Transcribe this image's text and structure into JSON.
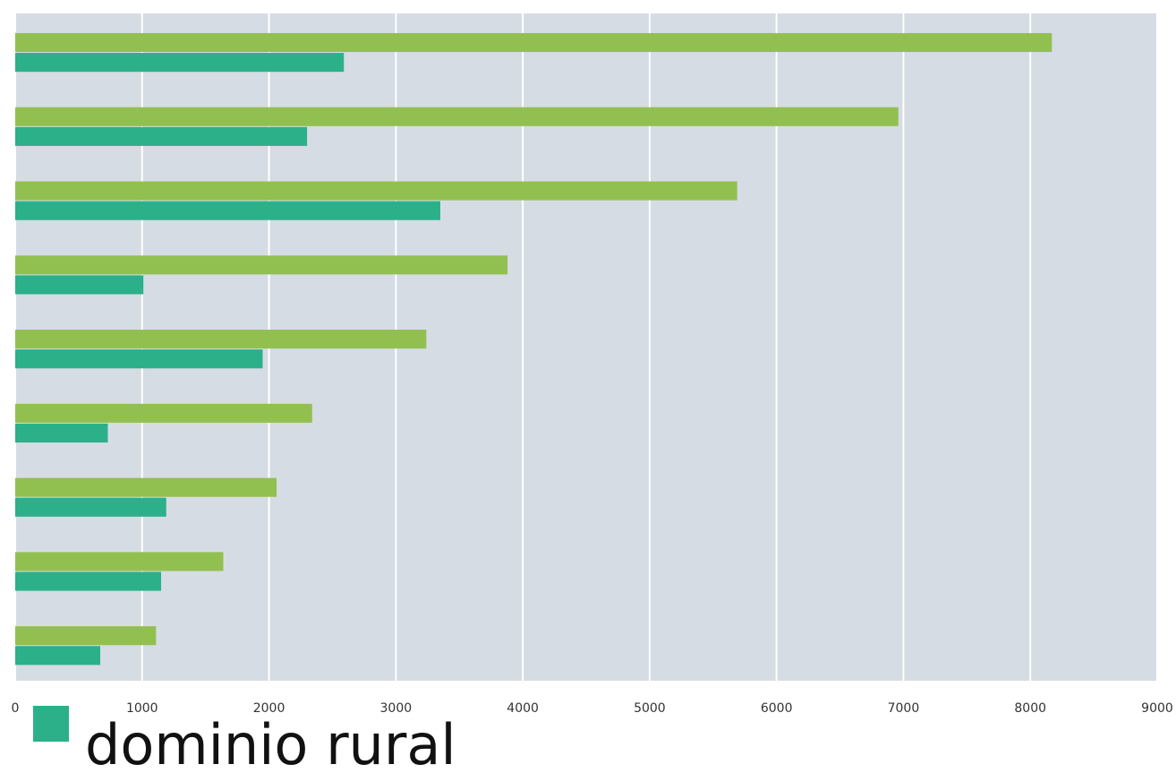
{
  "chart_data": {
    "type": "barh",
    "categories": [
      null,
      null,
      null,
      null,
      null,
      null,
      null,
      null,
      null
    ],
    "series": [
      {
        "color": "#92c050",
        "values": [
          8170,
          6960,
          5690,
          3880,
          3240,
          2340,
          2060,
          1640,
          1110
        ]
      },
      {
        "name": "dominio rural",
        "color": "#2bb08a",
        "values": [
          2590,
          2300,
          3350,
          1010,
          1950,
          730,
          1190,
          1150,
          670
        ]
      }
    ],
    "xlim": [
      0,
      9000
    ],
    "xticks": [
      0,
      1000,
      2000,
      3000,
      4000,
      5000,
      6000,
      7000,
      8000,
      9000
    ],
    "grid": true,
    "legend": "bottom-left"
  }
}
